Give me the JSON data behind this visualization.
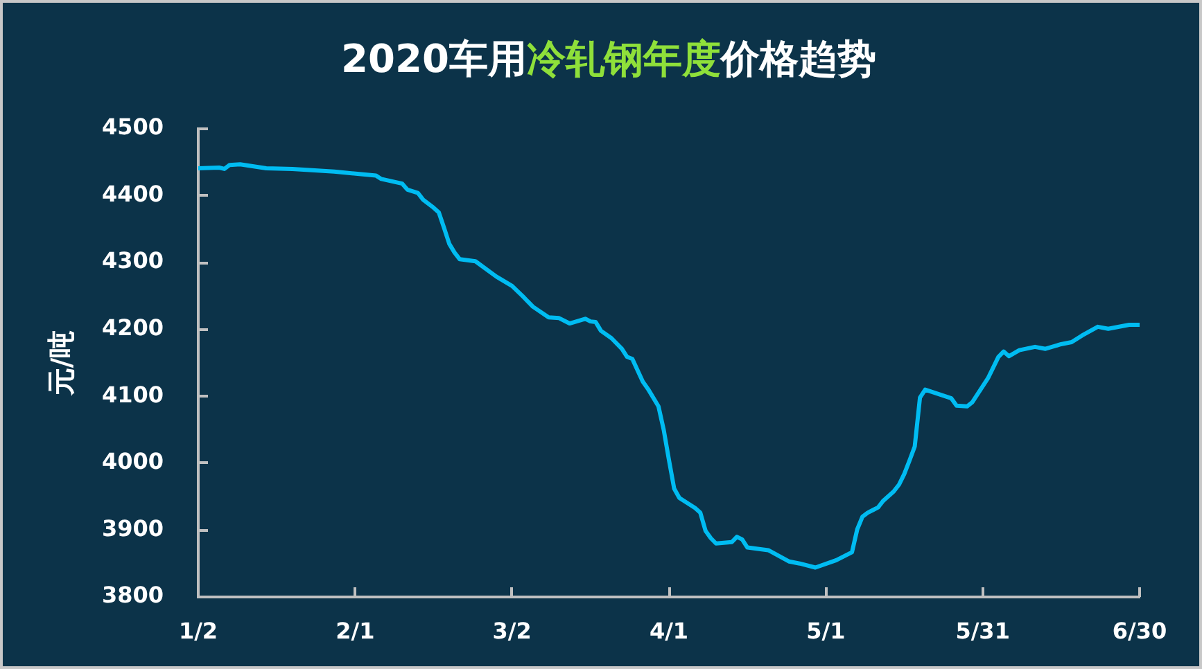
{
  "chart_data": {
    "type": "line",
    "title": "2020车用冷轧钢年度价格趋势",
    "ylabel": "元/吨",
    "x": [
      "2020-01-02",
      "2020-01-06",
      "2020-01-07",
      "2020-01-08",
      "2020-01-10",
      "2020-01-15",
      "2020-01-20",
      "2020-01-28",
      "2020-02-05",
      "2020-02-06",
      "2020-02-10",
      "2020-02-11",
      "2020-02-13",
      "2020-02-14",
      "2020-02-16",
      "2020-02-17",
      "2020-02-18",
      "2020-02-19",
      "2020-02-20",
      "2020-02-21",
      "2020-02-24",
      "2020-02-28",
      "2020-03-02",
      "2020-03-04",
      "2020-03-06",
      "2020-03-09",
      "2020-03-11",
      "2020-03-13",
      "2020-03-16",
      "2020-03-17",
      "2020-03-18",
      "2020-03-19",
      "2020-03-21",
      "2020-03-23",
      "2020-03-24",
      "2020-03-25",
      "2020-03-27",
      "2020-03-28",
      "2020-03-30",
      "2020-03-31",
      "2020-04-01",
      "2020-04-02",
      "2020-04-03",
      "2020-04-06",
      "2020-04-07",
      "2020-04-08",
      "2020-04-09",
      "2020-04-10",
      "2020-04-13",
      "2020-04-14",
      "2020-04-15",
      "2020-04-16",
      "2020-04-20",
      "2020-04-24",
      "2020-04-26",
      "2020-04-29",
      "2020-05-03",
      "2020-05-06",
      "2020-05-07",
      "2020-05-08",
      "2020-05-09",
      "2020-05-10",
      "2020-05-11",
      "2020-05-12",
      "2020-05-14",
      "2020-05-15",
      "2020-05-16",
      "2020-05-17",
      "2020-05-18",
      "2020-05-19",
      "2020-05-20",
      "2020-05-25",
      "2020-05-26",
      "2020-05-28",
      "2020-05-29",
      "2020-06-01",
      "2020-06-03",
      "2020-06-04",
      "2020-06-05",
      "2020-06-07",
      "2020-06-10",
      "2020-06-12",
      "2020-06-15",
      "2020-06-17",
      "2020-06-19",
      "2020-06-22",
      "2020-06-24",
      "2020-06-28",
      "2020-06-30"
    ],
    "values": [
      4441,
      4442,
      4440,
      4446,
      4447,
      4441,
      4440,
      4436,
      4430,
      4425,
      4418,
      4409,
      4404,
      4394,
      4382,
      4375,
      4352,
      4328,
      4315,
      4305,
      4302,
      4279,
      4265,
      4250,
      4234,
      4218,
      4217,
      4209,
      4216,
      4212,
      4211,
      4198,
      4187,
      4171,
      4159,
      4156,
      4122,
      4111,
      4085,
      4050,
      4005,
      3962,
      3948,
      3933,
      3926,
      3899,
      3888,
      3880,
      3882,
      3890,
      3886,
      3874,
      3870,
      3853,
      3850,
      3844,
      3855,
      3867,
      3901,
      3920,
      3926,
      3930,
      3934,
      3944,
      3958,
      3968,
      3984,
      4004,
      4025,
      4098,
      4110,
      4097,
      4086,
      4085,
      4091,
      4127,
      4159,
      4167,
      4160,
      4169,
      4174,
      4171,
      4178,
      4181,
      4191,
      4204,
      4201,
      4207,
      4207
    ],
    "color": "#00bcf2",
    "xlim": [
      "2020-01-02",
      "2020-06-30"
    ],
    "xticks": [
      {
        "value": "2020-01-02",
        "label": "1/2"
      },
      {
        "value": "2020-02-01",
        "label": "2/1"
      },
      {
        "value": "2020-03-02",
        "label": "3/2"
      },
      {
        "value": "2020-04-01",
        "label": "4/1"
      },
      {
        "value": "2020-05-01",
        "label": "5/1"
      },
      {
        "value": "2020-05-31",
        "label": "5/31"
      },
      {
        "value": "2020-06-30",
        "label": "6/30"
      }
    ],
    "ylim": [
      3800,
      4500
    ],
    "yticks": [
      3800,
      3900,
      4000,
      4100,
      4200,
      4300,
      4400,
      4500
    ],
    "grid": false,
    "legend": false,
    "marker": "none",
    "line_style": "solid"
  }
}
